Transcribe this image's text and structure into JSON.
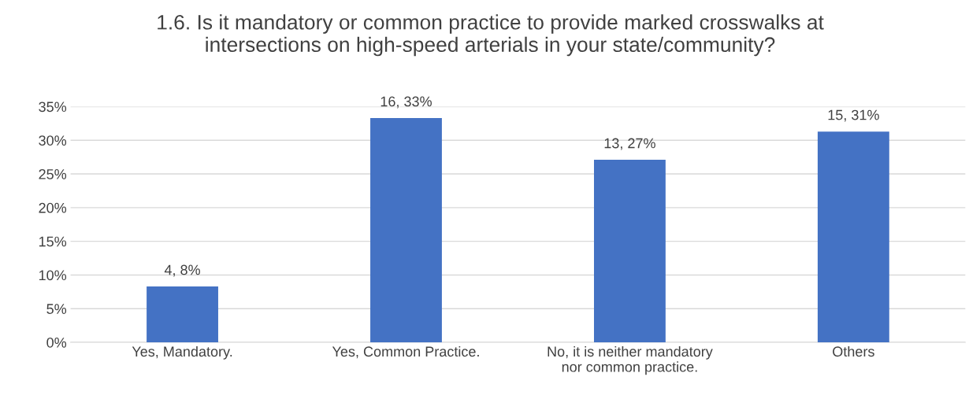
{
  "chart_data": {
    "type": "bar",
    "title": "1.6. Is it mandatory or common practice to provide marked crosswalks at\nintersections on high-speed arterials in your state/community?",
    "categories": [
      "Yes, Mandatory.",
      "Yes, Common Practice.",
      "No, it is neither mandatory\nnor common practice.",
      "Others"
    ],
    "values": [
      8.3,
      33.3,
      27.1,
      31.3
    ],
    "value_labels": [
      "4, 8%",
      "16, 33%",
      "13, 27%",
      "15, 31%"
    ],
    "color": "#4472c4",
    "ylim": [
      0,
      35
    ],
    "yticks": [
      {
        "value": 0,
        "label": "0%"
      },
      {
        "value": 5,
        "label": "5%"
      },
      {
        "value": 10,
        "label": "10%"
      },
      {
        "value": 15,
        "label": "15%"
      },
      {
        "value": 20,
        "label": "20%"
      },
      {
        "value": 25,
        "label": "25%"
      },
      {
        "value": 30,
        "label": "30%"
      },
      {
        "value": 35,
        "label": "35%"
      }
    ],
    "grid": "y"
  }
}
